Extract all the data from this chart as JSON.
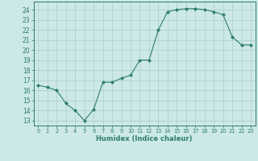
{
  "xlabel": "Humidex (Indice chaleur)",
  "ylabel": "",
  "x": [
    0,
    1,
    2,
    3,
    4,
    5,
    6,
    7,
    8,
    9,
    10,
    11,
    12,
    13,
    14,
    15,
    16,
    17,
    18,
    19,
    20,
    21,
    22,
    23
  ],
  "y": [
    16.5,
    16.3,
    16.0,
    14.7,
    14.0,
    13.0,
    14.1,
    16.8,
    16.8,
    17.2,
    17.5,
    19.0,
    19.0,
    22.0,
    23.8,
    24.0,
    24.1,
    24.1,
    24.0,
    23.8,
    23.5,
    21.3,
    20.5,
    20.5
  ],
  "line_color": "#2e7d6e",
  "marker": "D",
  "marker_size": 2.0,
  "bg_color": "#cce8e8",
  "grid_color": "#aacccc",
  "tick_color": "#2e7d6e",
  "label_color": "#2e7d6e",
  "ylim": [
    12.5,
    24.8
  ],
  "xlim": [
    -0.5,
    23.5
  ],
  "yticks": [
    13,
    14,
    15,
    16,
    17,
    18,
    19,
    20,
    21,
    22,
    23,
    24
  ],
  "xticks": [
    0,
    1,
    2,
    3,
    4,
    5,
    6,
    7,
    8,
    9,
    10,
    11,
    12,
    13,
    14,
    15,
    16,
    17,
    18,
    19,
    20,
    21,
    22,
    23
  ],
  "xlabel_fontsize": 6.0,
  "tick_fontsize": 5.5,
  "xtick_fontsize": 4.8
}
